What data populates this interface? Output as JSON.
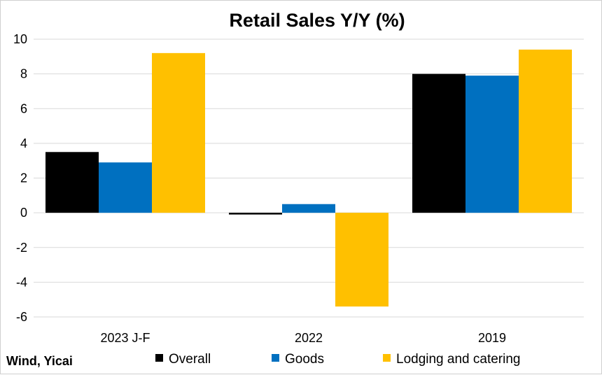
{
  "chart_data": {
    "type": "bar",
    "title": "Retail Sales Y/Y (%)",
    "categories": [
      "2023 J-F",
      "2022",
      "2019"
    ],
    "series": [
      {
        "name": "Overall",
        "color": "#000000",
        "values": [
          3.5,
          -0.1,
          8.0
        ]
      },
      {
        "name": "Goods",
        "color": "#0070C0",
        "values": [
          2.9,
          0.5,
          7.9
        ]
      },
      {
        "name": "Lodging and catering",
        "color": "#FFC000",
        "values": [
          9.2,
          -5.4,
          9.4
        ]
      }
    ],
    "ylim": [
      -6,
      10
    ],
    "yticks": [
      10,
      8,
      6,
      4,
      2,
      0,
      -2,
      -4,
      -6
    ],
    "grid": true,
    "legend_position": "bottom",
    "source": "Wind, Yicai"
  }
}
